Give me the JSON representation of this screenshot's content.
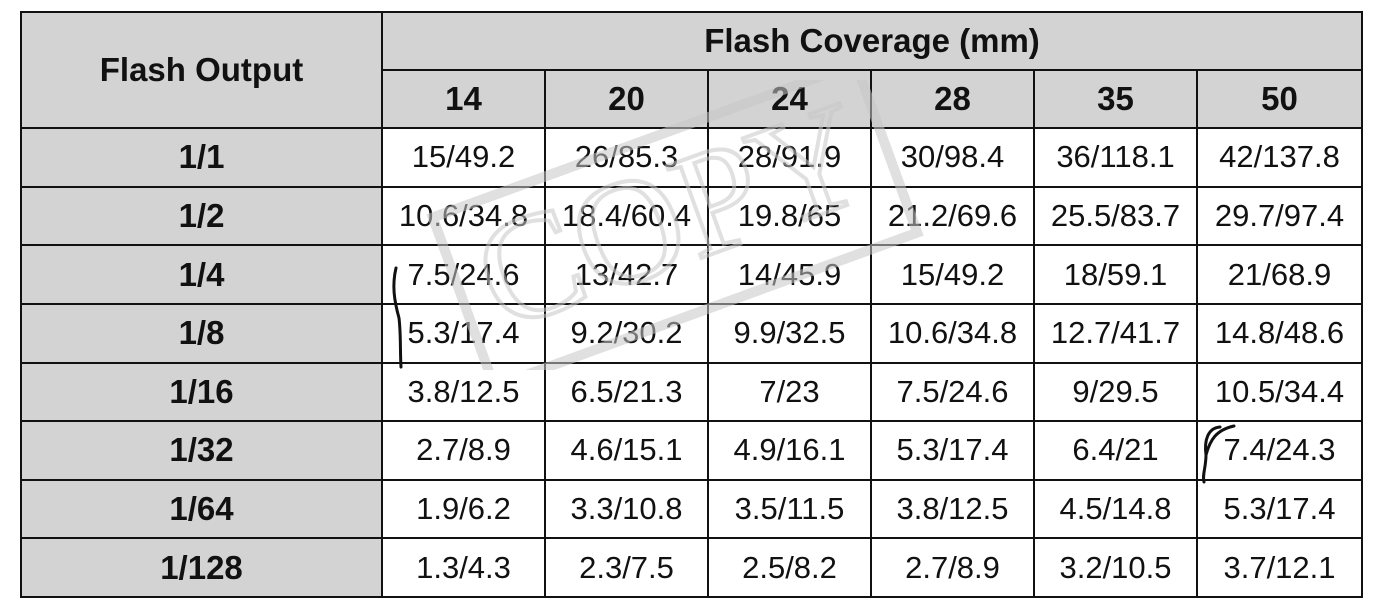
{
  "table": {
    "corner_header": "Flash Output",
    "group_header": "Flash Coverage (mm)",
    "columns": [
      "14",
      "20",
      "24",
      "28",
      "35",
      "50"
    ],
    "rows": [
      {
        "label": "1/1",
        "values": [
          "15/49.2",
          "26/85.3",
          "28/91.9",
          "30/98.4",
          "36/118.1",
          "42/137.8"
        ]
      },
      {
        "label": "1/2",
        "values": [
          "10.6/34.8",
          "18.4/60.4",
          "19.8/65",
          "21.2/69.6",
          "25.5/83.7",
          "29.7/97.4"
        ]
      },
      {
        "label": "1/4",
        "values": [
          "7.5/24.6",
          "13/42.7",
          "14/45.9",
          "15/49.2",
          "18/59.1",
          "21/68.9"
        ]
      },
      {
        "label": "1/8",
        "values": [
          "5.3/17.4",
          "9.2/30.2",
          "9.9/32.5",
          "10.6/34.8",
          "12.7/41.7",
          "14.8/48.6"
        ]
      },
      {
        "label": "1/16",
        "values": [
          "3.8/12.5",
          "6.5/21.3",
          "7/23",
          "7.5/24.6",
          "9/29.5",
          "10.5/34.4"
        ]
      },
      {
        "label": "1/32",
        "values": [
          "2.7/8.9",
          "4.6/15.1",
          "4.9/16.1",
          "5.3/17.4",
          "6.4/21",
          "7.4/24.3"
        ]
      },
      {
        "label": "1/64",
        "values": [
          "1.9/6.2",
          "3.3/10.8",
          "3.5/11.5",
          "3.8/12.5",
          "4.5/14.8",
          "5.3/17.4"
        ]
      },
      {
        "label": "1/128",
        "values": [
          "1.3/4.3",
          "2.3/7.5",
          "2.5/8.2",
          "2.7/8.9",
          "3.2/10.5",
          "3.7/12.1"
        ]
      }
    ]
  },
  "watermark": {
    "text": "COPY",
    "color": "#c8c8c8"
  },
  "colors": {
    "header_bg": "#d3d3d3",
    "border": "#111111",
    "cell_bg": "#ffffff"
  }
}
